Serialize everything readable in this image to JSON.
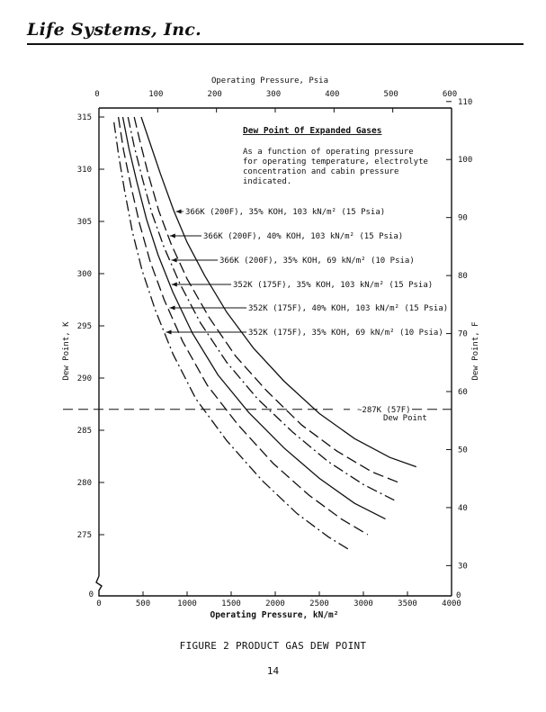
{
  "header": {
    "logo_text": "Life Systems, Inc."
  },
  "caption": "FIGURE 2   PRODUCT GAS DEW POINT",
  "page_number": "14",
  "chart_data": {
    "type": "line",
    "title": "Dew Point Of Expanded Gases",
    "subtitle_lines": [
      "As a function of operating pressure",
      "for operating temperature, electrolyte",
      "concentration and cabin pressure",
      "indicated."
    ],
    "xlabel": "Operating Pressure, kN/m²",
    "x2label": "Operating Pressure, Psia",
    "ylabel": "Dew Point, K",
    "y2label": "Dew Point, F",
    "xlim": [
      0,
      4000
    ],
    "ylim": [
      270,
      316
    ],
    "x_ticks": [
      "0",
      "500",
      "1000",
      "1500",
      "2000",
      "2500",
      "3000",
      "3500",
      "4000"
    ],
    "x2_ticks": [
      "0",
      "100",
      "200",
      "300",
      "400",
      "500",
      "600"
    ],
    "y_ticks": [
      "315",
      "310",
      "305",
      "300",
      "295",
      "290",
      "285",
      "280",
      "275"
    ],
    "y_zero_label": "0",
    "y2_ticks": [
      "110",
      "100",
      "90",
      "80",
      "70",
      "60",
      "50",
      "40",
      "30"
    ],
    "y2_zero_label": "0",
    "grid": false,
    "reference_line": {
      "y": 287,
      "label_1": "~287K (57F)",
      "label_2": "Dew Point"
    },
    "series": [
      {
        "name": "366K (200F), 35% KOH, 103 kN/m² (15 Psia)",
        "dash": "solid",
        "x": [
          480,
          580,
          700,
          850,
          1000,
          1200,
          1450,
          1750,
          2100,
          2500,
          2900,
          3300,
          3600
        ],
        "y": [
          315,
          312.5,
          309.5,
          306,
          303,
          299.8,
          296.3,
          292.9,
          289.7,
          286.6,
          284.2,
          282.4,
          281.5
        ]
      },
      {
        "name": "366K (200F), 40% KOH, 103 kN/m² (15 Psia)",
        "dash": "long",
        "x": [
          400,
          470,
          560,
          680,
          820,
          1000,
          1250,
          1550,
          1900,
          2300,
          2700,
          3100,
          3400
        ],
        "y": [
          315,
          312.5,
          309.5,
          306,
          302.8,
          299.5,
          295.8,
          292.1,
          288.8,
          285.5,
          283,
          281,
          280
        ]
      },
      {
        "name": "366K (200F), 35% KOH, 69 kN/m² (10 Psia)",
        "dash": "dashdot",
        "x": [
          330,
          400,
          490,
          600,
          740,
          920,
          1150,
          1450,
          1800,
          2200,
          2600,
          3000,
          3350
        ],
        "y": [
          315,
          312.2,
          309.2,
          305.8,
          302.5,
          299,
          295.3,
          291.5,
          288,
          284.8,
          282,
          279.8,
          278.3
        ]
      },
      {
        "name": "352K (175F), 35% KOH, 103 kN/m² (15 Psia)",
        "dash": "solid",
        "x": [
          270,
          340,
          430,
          540,
          670,
          840,
          1060,
          1350,
          1700,
          2100,
          2500,
          2900,
          3250
        ],
        "y": [
          315,
          312,
          308.8,
          305.2,
          301.8,
          298.2,
          294.3,
          290.3,
          286.7,
          283.3,
          280.4,
          278,
          276.5
        ]
      },
      {
        "name": "352K (175F), 40% KOH, 103 kN/m² (15 Psia)",
        "dash": "long",
        "x": [
          220,
          280,
          360,
          460,
          580,
          740,
          950,
          1230,
          1580,
          1980,
          2380,
          2750,
          3050
        ],
        "y": [
          315,
          311.8,
          308.5,
          304.8,
          301.2,
          297.5,
          293.5,
          289.3,
          285.5,
          281.8,
          278.8,
          276.5,
          275
        ]
      },
      {
        "name": "352K (175F), 35% KOH, 69 kN/m² (10 Psia)",
        "dash": "dashdot",
        "x": [
          170,
          220,
          290,
          380,
          490,
          640,
          840,
          1100,
          1450,
          1850,
          2250,
          2600,
          2850
        ],
        "y": [
          314.5,
          311.5,
          308,
          304,
          300.3,
          296.5,
          292.3,
          288,
          284,
          280.2,
          277,
          274.8,
          273.5
        ]
      }
    ]
  }
}
